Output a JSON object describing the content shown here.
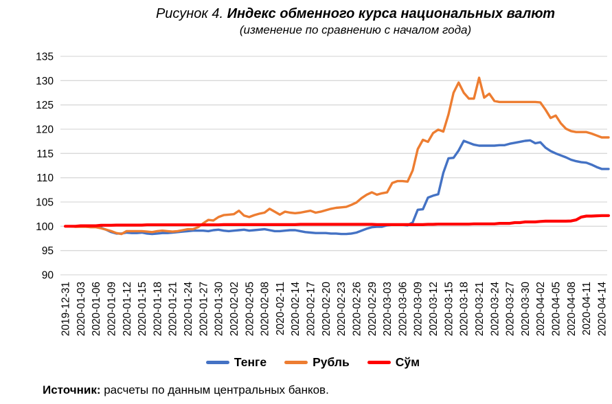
{
  "figure": {
    "title_prefix": "Рисунок 4. ",
    "title_main": "Индекс обменного курса национальных валют",
    "subtitle": "(изменение по сравнению с началом года)",
    "source_label": "Источник:",
    "source_text": " расчеты по данным центральных банков."
  },
  "chart_data": {
    "type": "line",
    "x_range": [
      "2019-12-31",
      "2020-04-14"
    ],
    "x_resolution": "daily",
    "x_tick_labels": [
      "2019-12-31",
      "2020-01-03",
      "2020-01-06",
      "2020-01-09",
      "2020-01-12",
      "2020-01-15",
      "2020-01-18",
      "2020-01-21",
      "2020-01-24",
      "2020-01-27",
      "2020-01-30",
      "2020-02-02",
      "2020-02-05",
      "2020-02-08",
      "2020-02-11",
      "2020-02-14",
      "2020-02-17",
      "2020-02-20",
      "2020-02-23",
      "2020-02-26",
      "2020-02-29",
      "2020-03-03",
      "2020-03-06",
      "2020-03-09",
      "2020-03-12",
      "2020-03-15",
      "2020-03-18",
      "2020-03-21",
      "2020-03-24",
      "2020-03-27",
      "2020-03-30",
      "2020-04-02",
      "2020-04-05",
      "2020-04-08",
      "2020-04-11",
      "2020-04-14"
    ],
    "ylim": [
      90,
      135
    ],
    "y_ticks": [
      90,
      95,
      100,
      105,
      110,
      115,
      120,
      125,
      130,
      135
    ],
    "grid": "horizontal",
    "gridline_color": "#D9D9D9",
    "legend_position": "bottom",
    "series": [
      {
        "name": "Тенге",
        "color": "#4472C4",
        "values": [
          100.0,
          100.0,
          100.0,
          100.0,
          100.0,
          99.9,
          99.9,
          99.7,
          99.3,
          98.8,
          98.5,
          98.5,
          98.7,
          98.6,
          98.6,
          98.7,
          98.5,
          98.4,
          98.5,
          98.6,
          98.6,
          98.7,
          98.8,
          98.9,
          99.0,
          99.1,
          99.1,
          99.1,
          99.0,
          99.2,
          99.3,
          99.1,
          99.0,
          99.1,
          99.2,
          99.3,
          99.1,
          99.2,
          99.3,
          99.4,
          99.2,
          99.0,
          99.0,
          99.1,
          99.2,
          99.2,
          99.0,
          98.8,
          98.7,
          98.6,
          98.6,
          98.6,
          98.5,
          98.5,
          98.4,
          98.4,
          98.5,
          98.7,
          99.1,
          99.5,
          99.8,
          99.9,
          99.9,
          100.2,
          100.3,
          100.3,
          100.3,
          100.2,
          100.8,
          103.4,
          103.5,
          105.9,
          106.3,
          106.6,
          111.0,
          114.0,
          114.1,
          115.6,
          117.6,
          117.2,
          116.8,
          116.6,
          116.6,
          116.6,
          116.6,
          116.7,
          116.7,
          117.0,
          117.2,
          117.4,
          117.6,
          117.7,
          117.1,
          117.3,
          116.2,
          115.5,
          115.0,
          114.6,
          114.2,
          113.7,
          113.4,
          113.2,
          113.1,
          112.7,
          112.2,
          111.8
        ]
      },
      {
        "name": "Рубль",
        "color": "#ED7D31",
        "values": [
          100.0,
          100.0,
          99.9,
          99.9,
          99.9,
          99.8,
          99.8,
          99.6,
          99.3,
          99.0,
          98.6,
          98.4,
          99.0,
          99.0,
          99.0,
          99.0,
          98.9,
          98.8,
          99.0,
          99.1,
          99.0,
          98.9,
          99.0,
          99.2,
          99.4,
          99.4,
          99.8,
          100.6,
          101.3,
          101.2,
          101.9,
          102.3,
          102.4,
          102.5,
          103.2,
          102.2,
          101.9,
          102.3,
          102.6,
          102.8,
          103.6,
          103.0,
          102.4,
          103.0,
          102.8,
          102.7,
          102.8,
          103.0,
          103.2,
          102.8,
          103.0,
          103.3,
          103.6,
          103.8,
          103.9,
          104.0,
          104.4,
          104.9,
          105.8,
          106.5,
          107.0,
          106.5,
          106.8,
          107.0,
          108.9,
          109.3,
          109.3,
          109.2,
          111.5,
          115.9,
          117.8,
          117.4,
          119.2,
          119.9,
          119.5,
          123.0,
          127.5,
          129.6,
          127.5,
          126.3,
          126.3,
          130.6,
          126.5,
          127.3,
          125.8,
          125.6,
          125.6,
          125.6,
          125.6,
          125.6,
          125.6,
          125.6,
          125.6,
          125.5,
          124.0,
          122.3,
          122.8,
          121.2,
          120.1,
          119.6,
          119.4,
          119.4,
          119.4,
          119.1,
          118.7,
          118.3
        ]
      },
      {
        "name": "Сўм",
        "color": "#FF0000",
        "values": [
          100.0,
          100.0,
          100.0,
          100.1,
          100.1,
          100.1,
          100.1,
          100.2,
          100.2,
          100.2,
          100.25,
          100.25,
          100.25,
          100.25,
          100.25,
          100.25,
          100.3,
          100.3,
          100.3,
          100.3,
          100.3,
          100.3,
          100.3,
          100.3,
          100.3,
          100.3,
          100.3,
          100.3,
          100.3,
          100.3,
          100.3,
          100.35,
          100.35,
          100.35,
          100.35,
          100.35,
          100.35,
          100.35,
          100.35,
          100.35,
          100.35,
          100.35,
          100.35,
          100.35,
          100.35,
          100.35,
          100.4,
          100.4,
          100.4,
          100.4,
          100.4,
          100.4,
          100.4,
          100.4,
          100.4,
          100.4,
          100.4,
          100.4,
          100.4,
          100.4,
          100.4,
          100.35,
          100.35,
          100.35,
          100.35,
          100.35,
          100.35,
          100.35,
          100.35,
          100.35,
          100.35,
          100.4,
          100.4,
          100.45,
          100.45,
          100.45,
          100.45,
          100.45,
          100.45,
          100.45,
          100.5,
          100.5,
          100.5,
          100.5,
          100.5,
          100.6,
          100.6,
          100.6,
          100.75,
          100.75,
          100.9,
          100.9,
          100.9,
          101.0,
          101.05,
          101.05,
          101.05,
          101.05,
          101.05,
          101.1,
          101.3,
          101.9,
          102.1,
          102.1,
          102.15,
          102.2
        ]
      }
    ]
  }
}
